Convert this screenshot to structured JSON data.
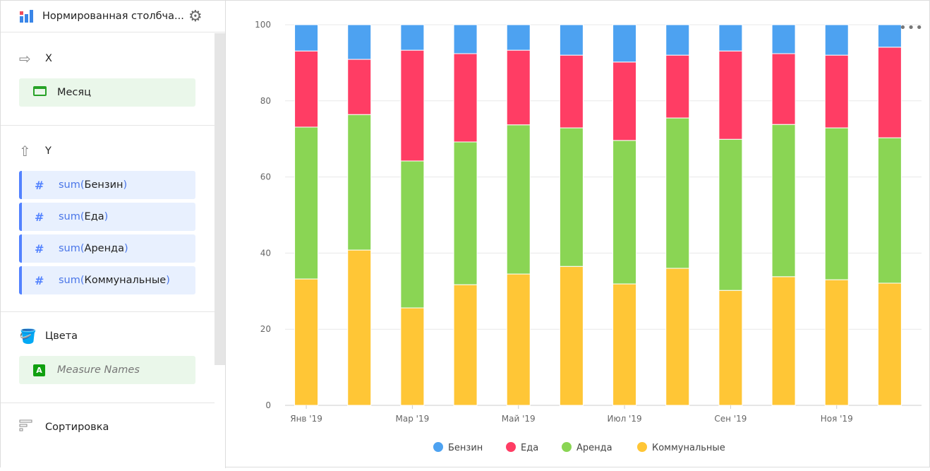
{
  "sidebar": {
    "chart_title": "Нормированная столбча...",
    "icons": {
      "chart": "bar-chart-icon",
      "settings": "gear-icon"
    },
    "sections": {
      "x": {
        "title": "X",
        "items": [
          {
            "label": "Месяц",
            "icon": "calendar-icon"
          }
        ]
      },
      "y": {
        "title": "Y",
        "items": [
          {
            "fn": "sum(",
            "field": "Бензин",
            "close": ")"
          },
          {
            "fn": "sum(",
            "field": "Еда",
            "close": ")"
          },
          {
            "fn": "sum(",
            "field": "Аренда",
            "close": ")"
          },
          {
            "fn": "sum(",
            "field": "Коммунальные",
            "close": ")"
          }
        ]
      },
      "colors": {
        "title": "Цвета",
        "items": [
          {
            "label": "Measure Names",
            "badge": "A"
          }
        ]
      },
      "sort": {
        "title": "Сортировка"
      }
    }
  },
  "chart_menu": "•••",
  "chart_data": {
    "type": "bar",
    "stacked": true,
    "normalized": true,
    "categories": [
      "Янв '19",
      "",
      "Мар '19",
      "",
      "Май '19",
      "",
      "Июл '19",
      "",
      "Сен '19",
      "",
      "Ноя '19",
      ""
    ],
    "series": [
      {
        "name": "Бензин",
        "color": "#4da2f1",
        "values": [
          6.9,
          9.1,
          6.7,
          7.6,
          6.7,
          8.0,
          9.8,
          8.0,
          6.9,
          7.6,
          8.0,
          5.9
        ]
      },
      {
        "name": "Еда",
        "color": "#ff3d64",
        "values": [
          20.0,
          14.5,
          29.1,
          23.2,
          19.6,
          19.1,
          20.6,
          16.5,
          23.2,
          18.6,
          19.1,
          23.8
        ]
      },
      {
        "name": "Аренда",
        "color": "#8ad554",
        "values": [
          39.9,
          35.6,
          38.6,
          37.5,
          39.2,
          36.4,
          37.7,
          39.5,
          39.7,
          40.0,
          39.9,
          38.2
        ]
      },
      {
        "name": "Коммунальные",
        "color": "#ffc636",
        "values": [
          33.2,
          40.8,
          25.6,
          31.7,
          34.5,
          36.5,
          31.9,
          36.0,
          30.2,
          33.8,
          33.0,
          32.1
        ]
      }
    ],
    "ylim": [
      0,
      100
    ],
    "yticks": [
      "0",
      "20",
      "40",
      "60",
      "80",
      "100"
    ],
    "grid": true,
    "legend": "bottom"
  }
}
